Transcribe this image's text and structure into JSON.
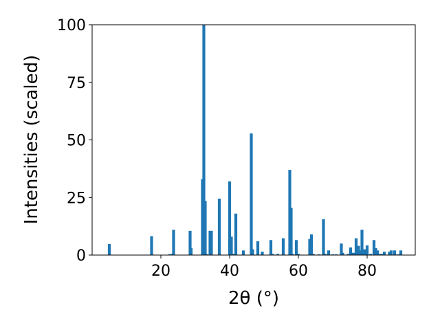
{
  "chart_data": {
    "type": "bar",
    "xlabel": "2θ (°)",
    "ylabel": "Intensities (scaled)",
    "title": "",
    "xlim": [
      0,
      94
    ],
    "ylim": [
      0,
      100
    ],
    "xticks": [
      20,
      40,
      60,
      80
    ],
    "yticks": [
      0,
      25,
      50,
      75,
      100
    ],
    "grid": false,
    "bar_color": "#1f77b4",
    "x": [
      5.0,
      17.3,
      22.5,
      23.2,
      23.7,
      28.5,
      28.8,
      32.1,
      32.5,
      32.9,
      33.2,
      34.3,
      34.7,
      37.0,
      40.0,
      40.5,
      41.0,
      41.8,
      44.0,
      46.3,
      46.7,
      48.2,
      49.5,
      52.0,
      52.5,
      54.0,
      55.6,
      57.5,
      57.9,
      58.3,
      59.4,
      60.0,
      63.3,
      63.8,
      64.3,
      66.0,
      67.3,
      67.8,
      68.8,
      70.0,
      71.0,
      72.5,
      72.9,
      74.5,
      75.2,
      76.0,
      76.8,
      77.5,
      78.0,
      78.5,
      79.2,
      80.0,
      81.0,
      82.0,
      82.5,
      83.0,
      83.7,
      84.5,
      85.0,
      86.5,
      87.0,
      88.0,
      89.0,
      89.8
    ],
    "values": [
      4.8,
      8.2,
      0.3,
      0.5,
      11.0,
      10.5,
      3.0,
      33.0,
      100.0,
      23.5,
      0.5,
      10.5,
      10.5,
      24.5,
      32.0,
      8.0,
      0.5,
      18.0,
      2.0,
      52.8,
      2.5,
      6.0,
      1.5,
      6.5,
      0.5,
      0.5,
      7.3,
      37.0,
      20.5,
      0.5,
      6.5,
      0.5,
      7.0,
      9.0,
      0.5,
      0.3,
      15.6,
      0.5,
      2.0,
      0.3,
      0.3,
      5.0,
      1.0,
      0.5,
      3.3,
      1.0,
      7.3,
      4.0,
      2.0,
      11.0,
      2.5,
      4.2,
      0.5,
      6.5,
      3.0,
      2.0,
      0.5,
      0.5,
      1.5,
      1.5,
      2.0,
      2.0,
      0.3,
      2.0
    ]
  }
}
